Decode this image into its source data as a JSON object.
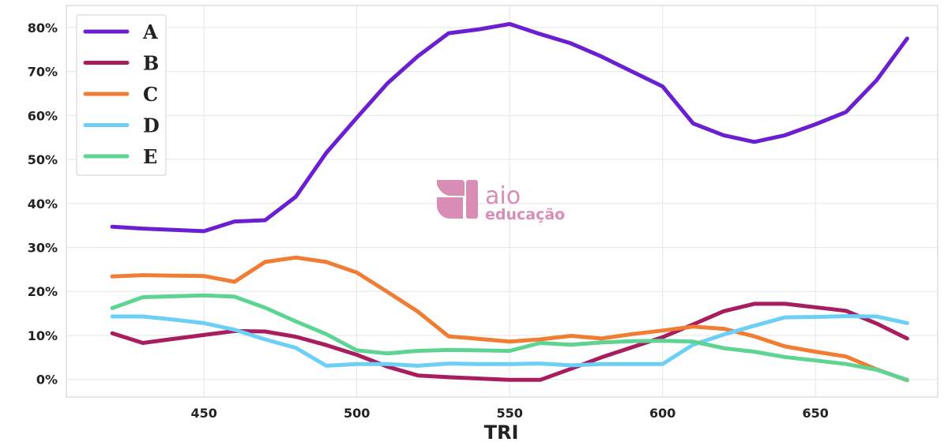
{
  "chart_data": {
    "type": "line",
    "xlabel": "TRI",
    "ylabel": "",
    "xlim": [
      405,
      690
    ],
    "ylim": [
      -4,
      85
    ],
    "x_ticks": [
      450,
      500,
      550,
      600,
      650
    ],
    "y_ticks": [
      0,
      10,
      20,
      30,
      40,
      50,
      60,
      70,
      80
    ],
    "y_tick_labels": [
      "0%",
      "10%",
      "20%",
      "30%",
      "40%",
      "50%",
      "60%",
      "70%",
      "80%"
    ],
    "grid": true,
    "legend_position": "top-left",
    "x": [
      420,
      430,
      440,
      450,
      460,
      470,
      480,
      490,
      500,
      510,
      520,
      530,
      540,
      550,
      560,
      570,
      580,
      590,
      600,
      610,
      620,
      630,
      640,
      650,
      660,
      670,
      680
    ],
    "series": [
      {
        "name": "A",
        "color": "#6a1fd0",
        "values": [
          34.7,
          34.3,
          34.0,
          33.7,
          35.9,
          36.2,
          41.5,
          51.5,
          59.5,
          67.3,
          73.5,
          78.7,
          79.6,
          80.8,
          78.5,
          76.4,
          73.4,
          70.0,
          66.6,
          58.2,
          55.5,
          54.0,
          55.5,
          58.0,
          60.8,
          68.0,
          77.5
        ]
      },
      {
        "name": "B",
        "color": "#a81d5e",
        "values": [
          10.5,
          8.3,
          9.2,
          10.1,
          11.0,
          10.9,
          9.7,
          7.8,
          5.6,
          2.9,
          0.9,
          0.5,
          0.2,
          -0.1,
          -0.1,
          2.4,
          5.0,
          7.3,
          9.6,
          12.5,
          15.5,
          17.2,
          17.2,
          16.4,
          15.6,
          12.7,
          9.3
        ]
      },
      {
        "name": "C",
        "color": "#f07d33",
        "values": [
          23.4,
          23.7,
          23.6,
          23.5,
          22.2,
          26.7,
          27.7,
          26.7,
          24.3,
          19.9,
          15.4,
          9.8,
          9.2,
          8.6,
          9.1,
          9.9,
          9.3,
          10.3,
          11.1,
          12.0,
          11.5,
          9.8,
          7.5,
          6.3,
          5.2,
          2.3,
          -0.2
        ]
      },
      {
        "name": "D",
        "color": "#6bcff6",
        "values": [
          14.3,
          14.3,
          13.6,
          12.8,
          11.3,
          9.1,
          7.2,
          3.1,
          3.5,
          3.5,
          3.1,
          3.6,
          3.5,
          3.5,
          3.6,
          3.2,
          3.5,
          3.5,
          3.5,
          7.9,
          10.2,
          12.2,
          14.1,
          14.2,
          14.4,
          14.3,
          12.8
        ]
      },
      {
        "name": "E",
        "color": "#5ed492",
        "values": [
          16.2,
          18.7,
          18.9,
          19.1,
          18.8,
          16.3,
          13.2,
          10.3,
          6.6,
          5.9,
          6.5,
          6.7,
          6.6,
          6.5,
          8.3,
          7.9,
          8.4,
          8.7,
          8.8,
          8.6,
          7.1,
          6.3,
          5.1,
          4.3,
          3.5,
          2.2,
          -0.1
        ]
      }
    ]
  },
  "watermark": {
    "brand": "aio",
    "subtitle": "educação",
    "color": "#d98db5"
  }
}
